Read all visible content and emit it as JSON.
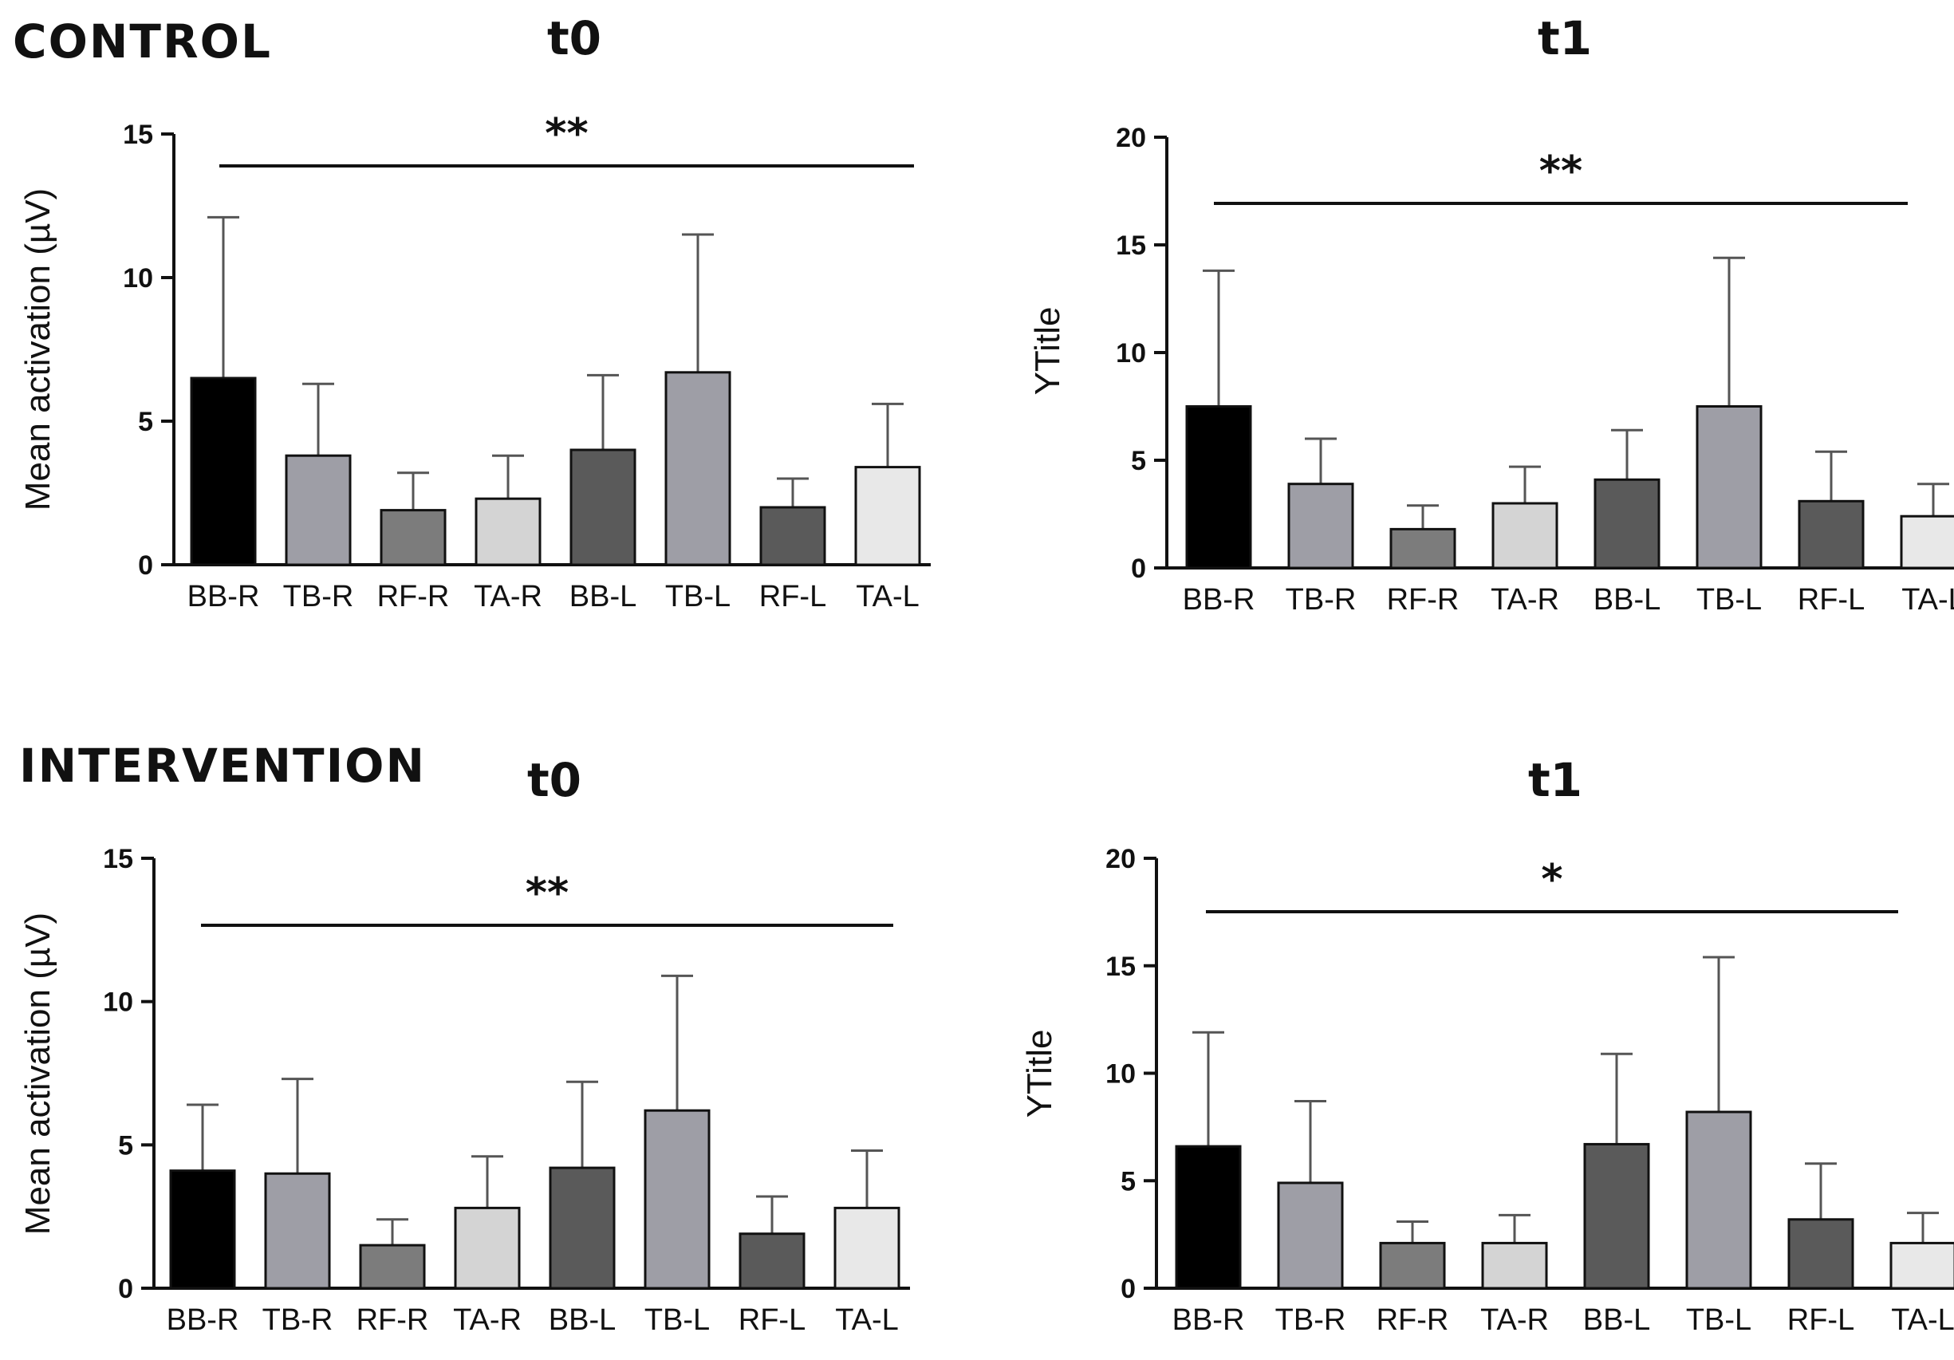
{
  "figure": {
    "group_labels": [
      "CONTROL",
      "INTERVENTION"
    ]
  },
  "colors": {
    "bar_fills": [
      "#000000",
      "#9e9ea6",
      "#7c7c7c",
      "#d4d4d4",
      "#5a5a5a",
      "#9e9ea6",
      "#5a5a5a",
      "#e8e8e8"
    ],
    "stroke": "#111111",
    "error_bar": "#555555"
  },
  "chart_data": [
    {
      "type": "bar",
      "group": "CONTROL",
      "title": "t0",
      "ylabel": "Mean activation (µV)",
      "xlabel": "",
      "ylim": [
        0,
        15
      ],
      "yticks": [
        0,
        5,
        10,
        15
      ],
      "categories": [
        "BB-R",
        "TB-R",
        "RF-R",
        "TA-R",
        "BB-L",
        "TB-L",
        "RF-L",
        "TA-L"
      ],
      "values": [
        6.5,
        3.8,
        1.9,
        2.3,
        4.0,
        6.7,
        2.0,
        3.4
      ],
      "error_upper": [
        12.1,
        6.3,
        3.2,
        3.8,
        6.6,
        11.5,
        3.0,
        5.6
      ],
      "significance": "**"
    },
    {
      "type": "bar",
      "group": "CONTROL",
      "title": "t1",
      "ylabel": "YTitle",
      "xlabel": "",
      "ylim": [
        0,
        20
      ],
      "yticks": [
        0,
        5,
        10,
        15,
        20
      ],
      "categories": [
        "BB-R",
        "TB-R",
        "RF-R",
        "TA-R",
        "BB-L",
        "TB-L",
        "RF-L",
        "TA-L"
      ],
      "values": [
        7.5,
        3.9,
        1.8,
        3.0,
        4.1,
        7.5,
        3.1,
        2.4
      ],
      "error_upper": [
        13.8,
        6.0,
        2.9,
        4.7,
        6.4,
        14.4,
        5.4,
        3.9
      ],
      "significance": "**"
    },
    {
      "type": "bar",
      "group": "INTERVENTION",
      "title": "t0",
      "ylabel": "Mean activation (µV)",
      "xlabel": "",
      "ylim": [
        0,
        15
      ],
      "yticks": [
        0,
        5,
        10,
        15
      ],
      "categories": [
        "BB-R",
        "TB-R",
        "RF-R",
        "TA-R",
        "BB-L",
        "TB-L",
        "RF-L",
        "TA-L"
      ],
      "values": [
        4.1,
        4.0,
        1.5,
        2.8,
        4.2,
        6.2,
        1.9,
        2.8
      ],
      "error_upper": [
        6.4,
        7.3,
        2.4,
        4.6,
        7.2,
        10.9,
        3.2,
        4.8
      ],
      "significance": "**"
    },
    {
      "type": "bar",
      "group": "INTERVENTION",
      "title": "t1",
      "ylabel": "YTitle",
      "xlabel": "",
      "ylim": [
        0,
        20
      ],
      "yticks": [
        0,
        5,
        10,
        15,
        20
      ],
      "categories": [
        "BB-R",
        "TB-R",
        "RF-R",
        "TA-R",
        "BB-L",
        "TB-L",
        "RF-L",
        "TA-L"
      ],
      "values": [
        6.6,
        4.9,
        2.1,
        2.1,
        6.7,
        8.2,
        3.2,
        2.1
      ],
      "error_upper": [
        11.9,
        8.7,
        3.1,
        3.4,
        10.9,
        15.4,
        5.8,
        3.5
      ],
      "significance": "*"
    }
  ]
}
